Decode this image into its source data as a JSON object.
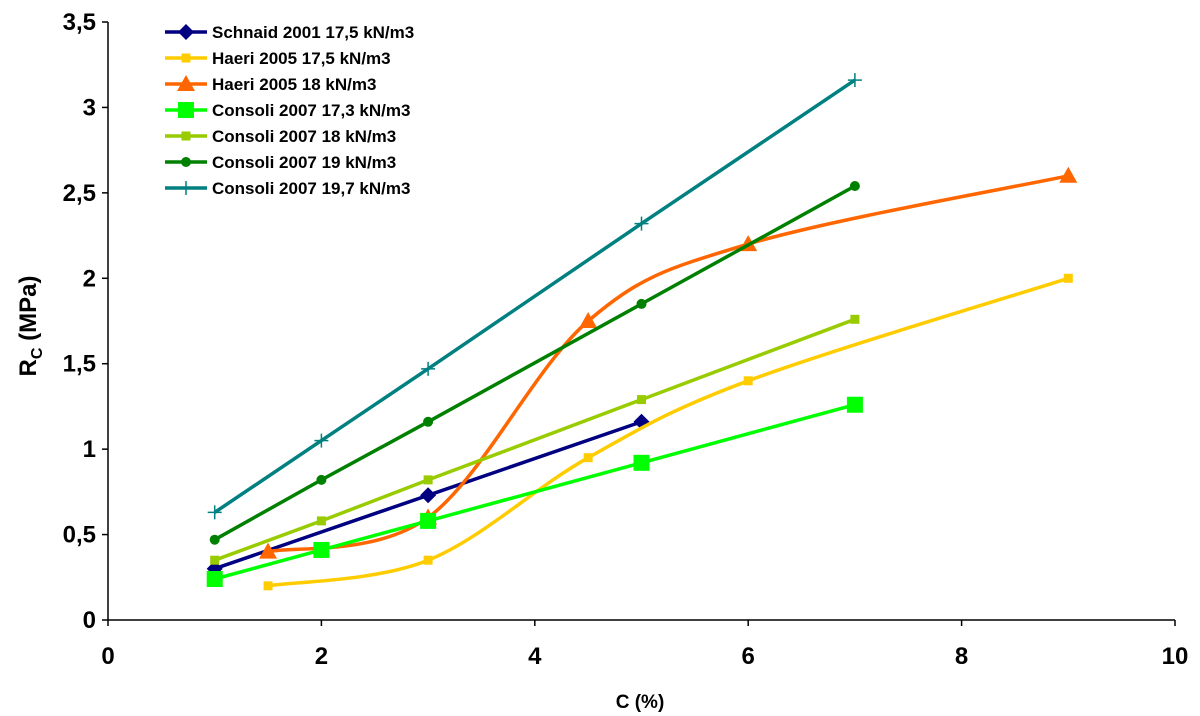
{
  "chart_data": {
    "type": "line",
    "xlabel": "C (%)",
    "ylabel_main": "R",
    "ylabel_sub": "C",
    "ylabel_unit": " (MPa)",
    "xlim": [
      0,
      10
    ],
    "ylim": [
      0,
      3.5
    ],
    "x_ticks": [
      0,
      2,
      4,
      6,
      8,
      10
    ],
    "x_tick_labels": [
      "0",
      "2",
      "4",
      "6",
      "8",
      "10"
    ],
    "y_ticks": [
      0,
      0.5,
      1,
      1.5,
      2,
      2.5,
      3,
      3.5
    ],
    "y_tick_labels": [
      "0",
      "0,5",
      "1",
      "1,5",
      "2",
      "2,5",
      "3",
      "3,5"
    ],
    "grid": false,
    "legend_position": "top-left",
    "series": [
      {
        "name": "Schnaid 2001 17,5 kN/m3",
        "color": "#000080",
        "marker": "diamond",
        "smooth": false,
        "points": [
          [
            1,
            0.3
          ],
          [
            3,
            0.73
          ],
          [
            5,
            1.16
          ]
        ]
      },
      {
        "name": "Haeri 2005 17,5 kN/m3",
        "color": "#FFCC00",
        "marker": "small-square",
        "smooth": true,
        "points": [
          [
            1.5,
            0.2
          ],
          [
            3,
            0.35
          ],
          [
            4.5,
            0.95
          ],
          [
            6,
            1.4
          ],
          [
            9,
            2.0
          ]
        ]
      },
      {
        "name": "Haeri 2005 18 kN/m3",
        "color": "#FF6600",
        "marker": "triangle",
        "smooth": true,
        "points": [
          [
            1.5,
            0.4
          ],
          [
            3,
            0.6
          ],
          [
            4.5,
            1.75
          ],
          [
            6,
            2.2
          ],
          [
            9,
            2.6
          ]
        ]
      },
      {
        "name": "Consoli 2007 17,3 kN/m3",
        "color": "#00FF00",
        "marker": "square",
        "smooth": false,
        "points": [
          [
            1,
            0.24
          ],
          [
            2,
            0.41
          ],
          [
            3,
            0.58
          ],
          [
            5,
            0.92
          ],
          [
            7,
            1.26
          ]
        ]
      },
      {
        "name": "Consoli 2007 18 kN/m3",
        "color": "#99CC00",
        "marker": "small-square",
        "smooth": false,
        "points": [
          [
            1,
            0.35
          ],
          [
            2,
            0.58
          ],
          [
            3,
            0.82
          ],
          [
            5,
            1.29
          ],
          [
            7,
            1.76
          ]
        ]
      },
      {
        "name": "Consoli 2007 19 kN/m3",
        "color": "#008000",
        "marker": "circle",
        "smooth": false,
        "points": [
          [
            1,
            0.47
          ],
          [
            2,
            0.82
          ],
          [
            3,
            1.16
          ],
          [
            5,
            1.85
          ],
          [
            7,
            2.54
          ]
        ]
      },
      {
        "name": "Consoli 2007 19,7 kN/m3",
        "color": "#008080",
        "marker": "plus",
        "smooth": false,
        "points": [
          [
            1,
            0.63
          ],
          [
            2,
            1.05
          ],
          [
            3,
            1.47
          ],
          [
            5,
            2.32
          ],
          [
            7,
            3.16
          ]
        ]
      }
    ]
  }
}
